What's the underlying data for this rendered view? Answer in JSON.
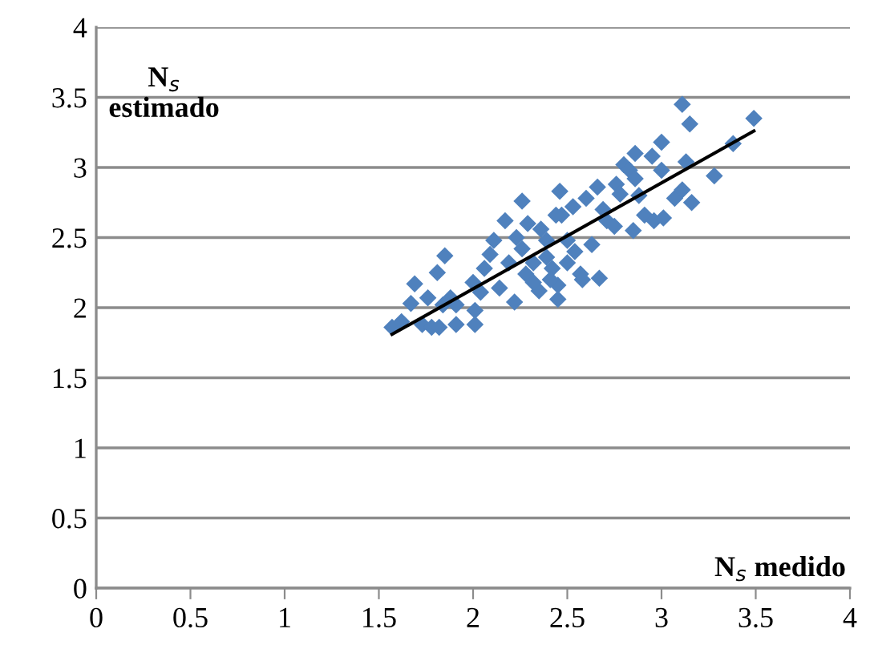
{
  "chart_data": {
    "type": "scatter",
    "xlabel": "N$_{s}$ medido",
    "ylabel": "N$_{s}$\nestimado",
    "xlim": [
      0,
      4
    ],
    "ylim": [
      0,
      4
    ],
    "xticks": [
      0,
      0.5,
      1,
      1.5,
      2,
      2.5,
      3,
      3.5,
      4
    ],
    "yticks": [
      0,
      0.5,
      1,
      1.5,
      2,
      2.5,
      3,
      3.5,
      4
    ],
    "grid": "y",
    "legend": false,
    "series": [
      {
        "marker": "diamond",
        "color": "#4f81bd",
        "x": [
          1.57,
          1.62,
          1.67,
          1.69,
          1.73,
          1.76,
          1.78,
          1.81,
          1.82,
          1.84,
          1.85,
          1.88,
          1.91,
          1.91,
          2.0,
          2.01,
          2.01,
          2.04,
          2.09,
          2.11,
          2.14,
          2.17,
          2.19,
          2.22,
          2.23,
          2.26,
          2.28,
          2.29,
          2.32,
          2.35,
          2.36,
          2.39,
          2.42,
          2.45,
          2.45,
          2.46,
          2.47,
          2.5,
          2.53,
          2.54,
          2.57,
          2.58,
          2.6,
          2.63,
          2.66,
          2.67,
          2.69,
          2.71,
          2.75,
          2.76,
          2.78,
          2.8,
          2.83,
          2.85,
          2.86,
          2.88,
          2.91,
          2.95,
          2.96,
          3.0,
          3.0,
          3.01,
          3.07,
          3.11,
          3.11,
          3.13,
          3.15,
          3.16,
          3.28,
          3.38,
          3.49,
          2.06,
          2.26,
          2.32,
          2.39,
          2.5,
          2.41,
          2.44,
          2.86
        ],
        "values": [
          1.86,
          1.9,
          2.03,
          2.17,
          1.88,
          2.07,
          1.86,
          2.25,
          1.86,
          2.02,
          2.37,
          2.07,
          1.88,
          2.02,
          2.18,
          1.88,
          1.98,
          2.11,
          2.38,
          2.48,
          2.14,
          2.62,
          2.32,
          2.04,
          2.5,
          2.76,
          2.24,
          2.6,
          2.32,
          2.12,
          2.56,
          2.36,
          2.28,
          2.06,
          2.16,
          2.83,
          2.66,
          2.48,
          2.72,
          2.4,
          2.24,
          2.2,
          2.78,
          2.45,
          2.86,
          2.21,
          2.7,
          2.62,
          2.58,
          2.88,
          2.81,
          3.02,
          2.98,
          2.55,
          3.1,
          2.8,
          2.66,
          3.08,
          2.62,
          3.18,
          2.98,
          2.64,
          2.78,
          3.45,
          2.84,
          3.04,
          3.31,
          2.75,
          2.94,
          3.17,
          3.35,
          2.28,
          2.42,
          2.18,
          2.48,
          2.32,
          2.2,
          2.66,
          2.92
        ]
      },
      {
        "type": "line",
        "color": "#000000",
        "marker": "none",
        "line_style": "solid",
        "x": [
          1.57,
          3.49
        ],
        "values": [
          1.81,
          3.26
        ]
      }
    ]
  }
}
